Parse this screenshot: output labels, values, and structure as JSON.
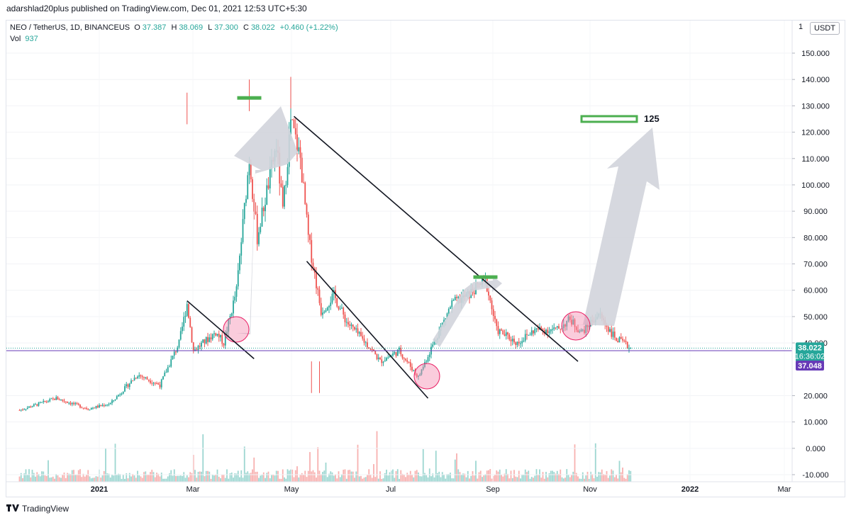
{
  "header": {
    "byline": "adarshlad20plus published on TradingView.com, Dec 01, 2021 12:53 UTC+5:30"
  },
  "legend": {
    "symbol": "NEO / TetherUS, 1D, BINANCEUS",
    "o_label": "O",
    "o_value": "37.387",
    "h_label": "H",
    "h_value": "38.069",
    "l_label": "L",
    "l_value": "37.300",
    "c_label": "C",
    "c_value": "38.022",
    "change": "+0.460 (+1.22%)",
    "vol_label": "Vol",
    "vol_value": "937"
  },
  "price_scale": {
    "currency": "USDT",
    "left_marker": "1",
    "ticks": [
      "150.000",
      "140.000",
      "130.000",
      "120.000",
      "110.000",
      "100.000",
      "90.000",
      "80.000",
      "70.000",
      "60.000",
      "50.000",
      "40.000",
      "20.000",
      "10.000",
      "0.000",
      "-10.000"
    ],
    "tags": {
      "last_price": "38.022",
      "countdown": "16:36:02",
      "purple_line": "37.048"
    }
  },
  "time_axis": {
    "labels": [
      "2021",
      "Mar",
      "May",
      "Jul",
      "Sep",
      "Nov",
      "2022",
      "Mar"
    ]
  },
  "annotations": {
    "target_label": "125"
  },
  "footer": {
    "brand": "TradingView"
  },
  "colors": {
    "up": "#26a69a",
    "down": "#ef5350",
    "trendline": "#131722",
    "level_green": "#4caf50",
    "arrow": "#d1d4dc",
    "circle": "#f48fb1",
    "purple": "#673ab7",
    "last_price_bg": "#26a69a"
  },
  "chart_data": {
    "type": "candlestick",
    "symbol": "NEO / TetherUS",
    "interval": "1D",
    "exchange": "BINANCEUS",
    "ylim": [
      -10,
      150
    ],
    "last_close": 38.022,
    "trendlines": [
      {
        "from": {
          "date": "2021-02-25",
          "price": 56
        },
        "to": {
          "date": "2021-04-08",
          "price": 34
        }
      },
      {
        "from": {
          "date": "2021-05-03",
          "price": 126
        },
        "to": {
          "date": "2021-10-28",
          "price": 33
        }
      },
      {
        "from": {
          "date": "2021-05-11",
          "price": 71
        },
        "to": {
          "date": "2021-07-26",
          "price": 19
        }
      }
    ],
    "levels": [
      {
        "date": "2021-04-05",
        "price": 133
      },
      {
        "date": "2021-08-31",
        "price": 65
      },
      {
        "date": "2021-11-17",
        "price": 125,
        "label": "125"
      }
    ],
    "volume_axis": "bottom-overlay"
  }
}
